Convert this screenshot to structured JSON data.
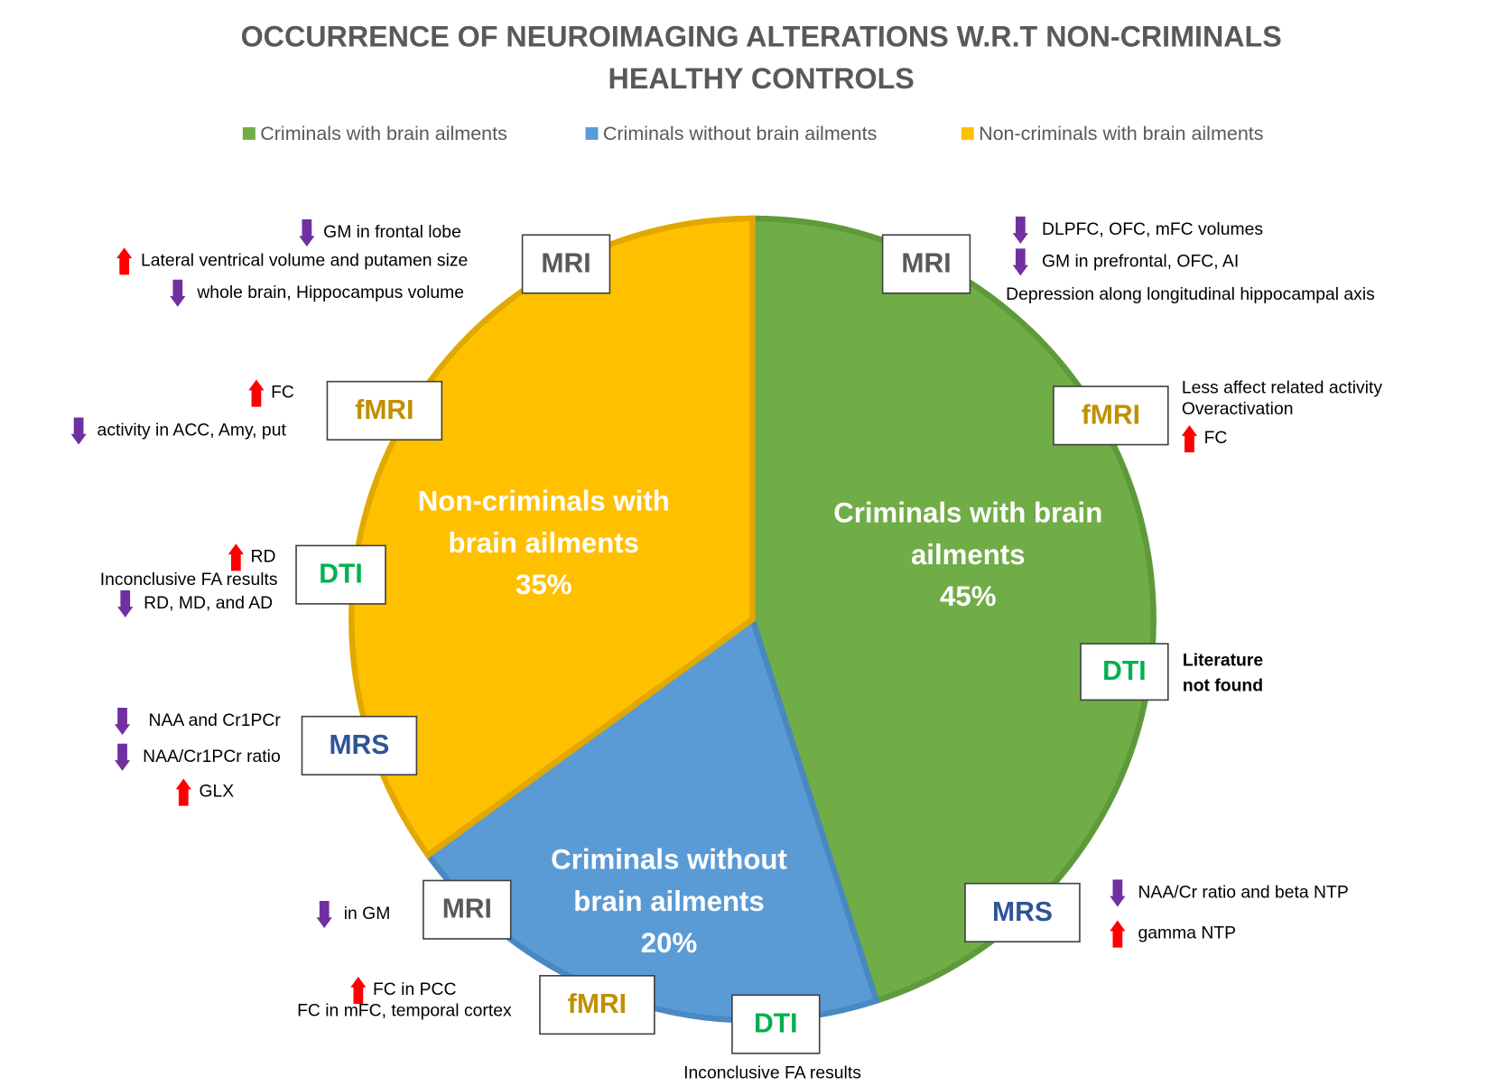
{
  "chart_data": {
    "type": "pie",
    "title_lines": [
      "OCCURRENCE OF NEUROIMAGING ALTERATIONS W.R.T NON-CRIMINALS",
      "HEALTHY CONTROLS"
    ],
    "categories": [
      "Criminals with brain ailments",
      "Criminals without brain ailments",
      "Non-criminals with brain ailments"
    ],
    "values": [
      45,
      20,
      35
    ],
    "value_labels": [
      "45%",
      "20%",
      "35%"
    ],
    "colors": [
      "#70ad47",
      "#5b9bd5",
      "#ffc000"
    ],
    "legend": "top",
    "annotations": [
      {
        "modality": "MRI",
        "color": "#595959",
        "notes": [
          {
            "text": "GM in frontal lobe",
            "arrow": "down"
          },
          {
            "text": "Lateral ventrical volume and  putamen size",
            "arrow": "up"
          },
          {
            "text": "whole brain, Hippocampus volume",
            "arrow": "down"
          }
        ]
      },
      {
        "modality": "fMRI",
        "color": "#bf9000",
        "notes": [
          {
            "text": "FC",
            "arrow": "up"
          },
          {
            "text": "activity in ACC, Amy, put",
            "arrow": "down"
          }
        ]
      },
      {
        "modality": "DTI",
        "color": "#00b050",
        "notes": [
          {
            "text": "RD",
            "arrow": "up"
          },
          {
            "text": "Inconclusive FA results"
          },
          {
            "text": "RD, MD, and AD",
            "arrow": "down"
          }
        ]
      },
      {
        "modality": "MRS",
        "color": "#2f5597",
        "notes": [
          {
            "text": "NAA and Cr1PCr",
            "arrow": "down"
          },
          {
            "text": "NAA/Cr1PCr ratio",
            "arrow": "down"
          },
          {
            "text": "GLX",
            "arrow": "up"
          }
        ]
      },
      {
        "modality": "MRI",
        "color": "#595959",
        "notes": [
          {
            "text": "DLPFC, OFC, mFC volumes",
            "arrow": "down"
          },
          {
            "text": "GM in prefrontal, OFC, AI",
            "arrow": "down"
          },
          {
            "text": "Depression along longitudinal hippocampal axis"
          }
        ]
      },
      {
        "modality": "fMRI",
        "color": "#bf9000",
        "notes": [
          {
            "text": "Less affect related activity"
          },
          {
            "text": "Overactivation"
          },
          {
            "text": "FC",
            "arrow": "up"
          }
        ]
      },
      {
        "modality": "DTI",
        "color": "#00b050",
        "bold": true,
        "notes": [
          {
            "text": "Literature"
          },
          {
            "text": "not found"
          }
        ]
      },
      {
        "modality": "MRS",
        "color": "#2f5597",
        "notes": [
          {
            "text": "NAA/Cr ratio and beta NTP",
            "arrow": "down"
          },
          {
            "text": "gamma NTP",
            "arrow": "up"
          }
        ]
      },
      {
        "modality": "MRI",
        "color": "#595959",
        "notes": [
          {
            "text": "in GM",
            "arrow": "down"
          }
        ]
      },
      {
        "modality": "fMRI",
        "color": "#bf9000",
        "notes": [
          {
            "text": "FC in PCC",
            "arrow": "up"
          },
          {
            "text": "FC in mFC, temporal cortex"
          }
        ]
      },
      {
        "modality": "DTI",
        "color": "#00b050",
        "notes": [
          {
            "text": "Inconclusive FA results"
          }
        ]
      }
    ]
  }
}
